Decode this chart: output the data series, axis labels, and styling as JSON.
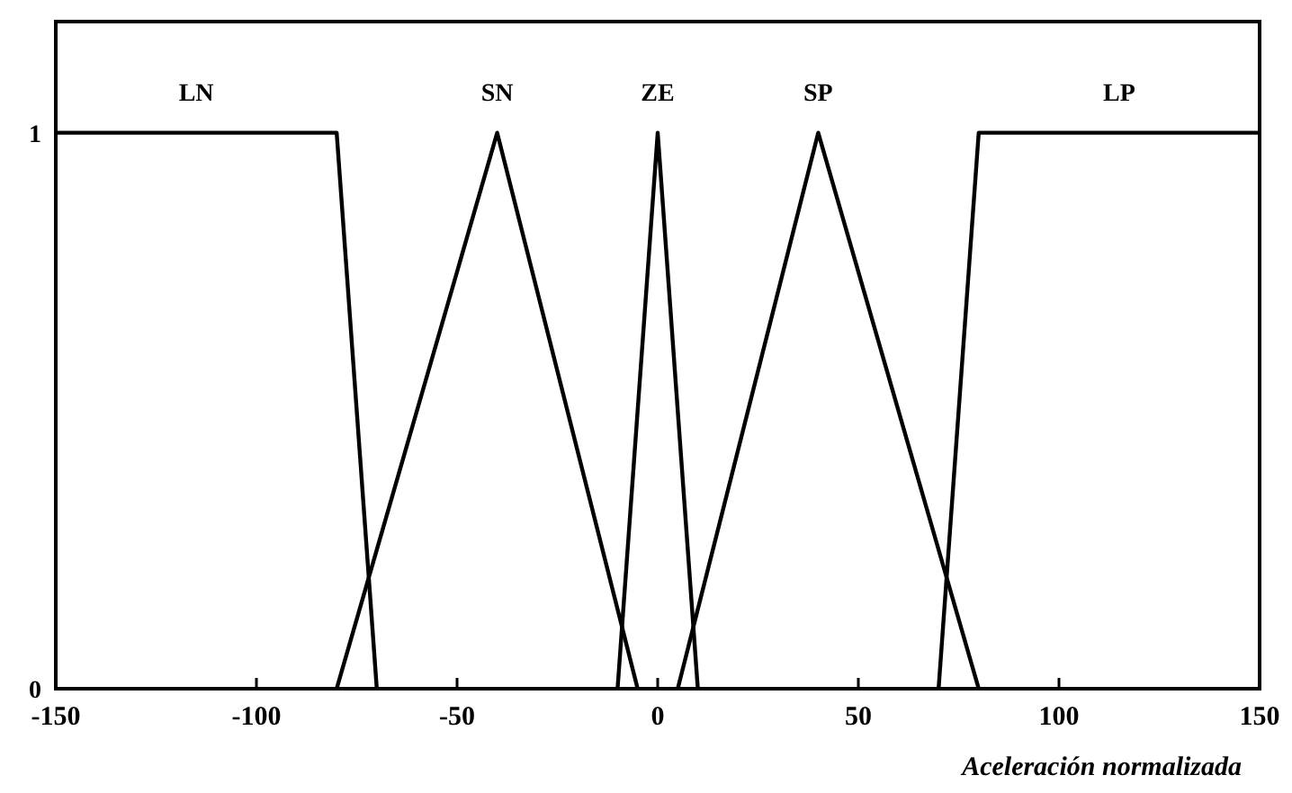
{
  "chart_data": {
    "type": "line",
    "xlabel": "Aceleración normalizada",
    "xlim": [
      -150,
      150
    ],
    "xticks": [
      -150,
      -100,
      -50,
      0,
      50,
      100,
      150
    ],
    "ylim": [
      0,
      1.2
    ],
    "yticks": [
      0,
      1
    ],
    "marker": "none",
    "line_style": "solid",
    "series": [
      {
        "name": "LN",
        "color": "#000000",
        "x": [
          -150,
          -80,
          -70
        ],
        "values": [
          1,
          1,
          0
        ]
      },
      {
        "name": "SN",
        "color": "#000000",
        "x": [
          -80,
          -40,
          -5
        ],
        "values": [
          0,
          1,
          0
        ]
      },
      {
        "name": "ZE",
        "color": "#000000",
        "x": [
          -10,
          0,
          10
        ],
        "values": [
          0,
          1,
          0
        ]
      },
      {
        "name": "SP",
        "color": "#000000",
        "x": [
          5,
          40,
          80
        ],
        "values": [
          0,
          1,
          0
        ]
      },
      {
        "name": "LP",
        "color": "#000000",
        "x": [
          70,
          80,
          150
        ],
        "values": [
          0,
          1,
          1
        ]
      }
    ]
  }
}
